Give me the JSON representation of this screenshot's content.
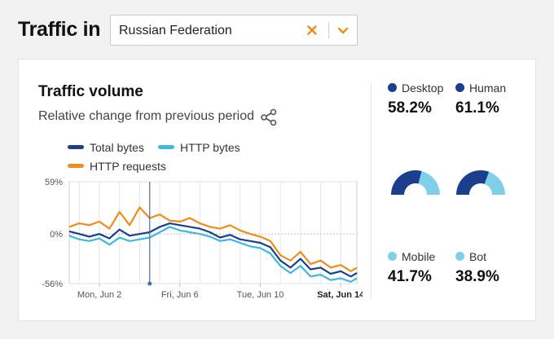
{
  "header": {
    "title": "Traffic in",
    "select": {
      "value": "Russian Federation"
    }
  },
  "card": {
    "title": "Traffic volume",
    "subtitle": "Relative change from previous period",
    "legend": [
      {
        "label": "Total bytes",
        "color": "#1a3f8f"
      },
      {
        "label": "HTTP bytes",
        "color": "#3db8e0"
      },
      {
        "label": "HTTP requests",
        "color": "#f08c1a"
      }
    ]
  },
  "chart_data": {
    "type": "line",
    "title": "Traffic volume",
    "subtitle": "Relative change from previous period",
    "ylim": [
      -56,
      59
    ],
    "yticks": [
      "59%",
      "0%",
      "-56%"
    ],
    "xticks": [
      "Mon, Jun 2",
      "Fri, Jun 6",
      "Tue, Jun 10",
      "Sat, Jun 14"
    ],
    "x_range_days": [
      0.5,
      14.8
    ],
    "grid": true,
    "marker": {
      "day": 4.5,
      "value": -56
    },
    "series": [
      {
        "name": "Total bytes",
        "color": "#1a3f8f",
        "x": [
          0.5,
          1,
          1.5,
          2,
          2.5,
          3,
          3.5,
          4,
          4.5,
          5,
          5.5,
          6,
          6.5,
          7,
          7.5,
          8,
          8.5,
          9,
          9.5,
          10,
          10.5,
          11,
          11.5,
          12,
          12.5,
          13,
          13.5,
          14,
          14.5,
          14.8
        ],
        "values": [
          3,
          0,
          -3,
          0,
          -5,
          5,
          -2,
          0,
          2,
          8,
          12,
          10,
          8,
          6,
          2,
          -4,
          -1,
          -6,
          -8,
          -10,
          -15,
          -30,
          -38,
          -28,
          -40,
          -38,
          -45,
          -42,
          -48,
          -44
        ]
      },
      {
        "name": "HTTP bytes",
        "color": "#3db8e0",
        "x": [
          0.5,
          1,
          1.5,
          2,
          2.5,
          3,
          3.5,
          4,
          4.5,
          5,
          5.5,
          6,
          6.5,
          7,
          7.5,
          8,
          8.5,
          9,
          9.5,
          10,
          10.5,
          11,
          11.5,
          12,
          12.5,
          13,
          13.5,
          14,
          14.5,
          14.8
        ],
        "values": [
          -2,
          -6,
          -8,
          -5,
          -12,
          -4,
          -8,
          -6,
          -4,
          2,
          8,
          4,
          2,
          0,
          -3,
          -8,
          -6,
          -10,
          -14,
          -16,
          -22,
          -36,
          -44,
          -36,
          -48,
          -46,
          -52,
          -50,
          -54,
          -50
        ]
      },
      {
        "name": "HTTP requests",
        "color": "#f08c1a",
        "x": [
          0.5,
          1,
          1.5,
          2,
          2.5,
          3,
          3.5,
          4,
          4.5,
          5,
          5.5,
          6,
          6.5,
          7,
          7.5,
          8,
          8.5,
          9,
          9.5,
          10,
          10.5,
          11,
          11.5,
          12,
          12.5,
          13,
          13.5,
          14,
          14.5,
          14.8
        ],
        "values": [
          8,
          12,
          10,
          14,
          6,
          25,
          10,
          30,
          18,
          22,
          15,
          14,
          18,
          12,
          8,
          6,
          10,
          4,
          0,
          -3,
          -8,
          -24,
          -30,
          -20,
          -34,
          -30,
          -38,
          -35,
          -42,
          -38
        ]
      }
    ]
  },
  "stats": {
    "desktop": {
      "label": "Desktop",
      "value": "58.2%",
      "color": "#1a3f8f",
      "fraction": 0.582
    },
    "mobile": {
      "label": "Mobile",
      "value": "41.7%",
      "color": "#7fcfe9",
      "fraction": 0.417
    },
    "human": {
      "label": "Human",
      "value": "61.1%",
      "color": "#1a3f8f",
      "fraction": 0.611
    },
    "bot": {
      "label": "Bot",
      "value": "38.9%",
      "color": "#7fcfe9",
      "fraction": 0.389
    }
  }
}
